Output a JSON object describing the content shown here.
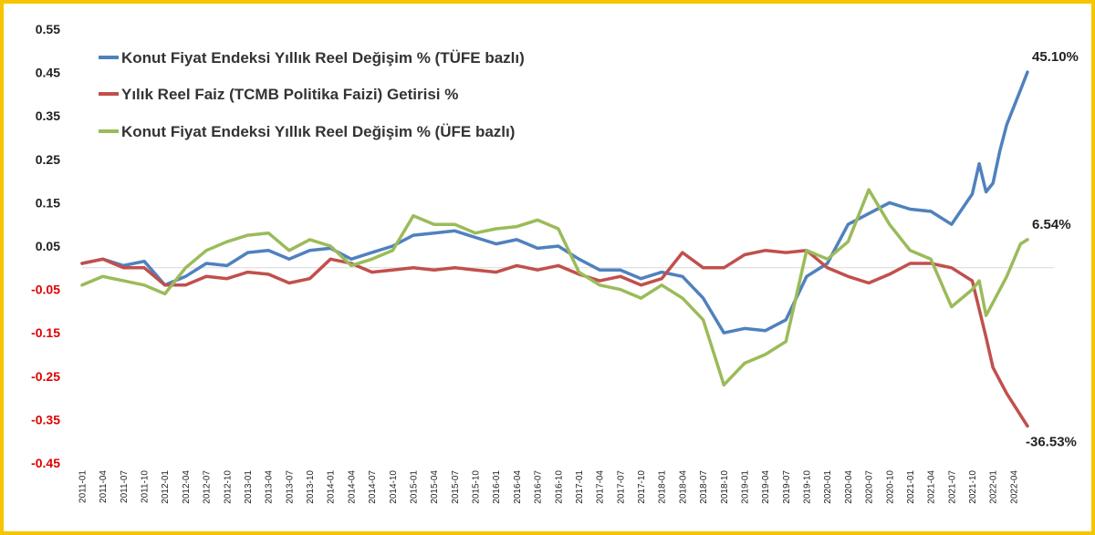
{
  "chart_data": {
    "type": "line",
    "ylim": [
      -0.45,
      0.55
    ],
    "y_ticks": [
      "0.55",
      "0.45",
      "0.35",
      "0.25",
      "0.15",
      "0.05",
      "-0.05",
      "-0.15",
      "-0.25",
      "-0.35",
      "-0.45"
    ],
    "y_tick_values": [
      0.55,
      0.45,
      0.35,
      0.25,
      0.15,
      0.05,
      -0.05,
      -0.15,
      -0.25,
      -0.35,
      -0.45
    ],
    "y_tick_colors": [
      "#222222",
      "#222222",
      "#222222",
      "#222222",
      "#222222",
      "#222222",
      "#e00000",
      "#e00000",
      "#e00000",
      "#e00000",
      "#e00000"
    ],
    "x_tick_labels": [
      "2011-01",
      "2011-04",
      "2011-07",
      "2011-10",
      "2012-01",
      "2012-04",
      "2012-07",
      "2012-10",
      "2013-01",
      "2013-04",
      "2013-07",
      "2013-10",
      "2014-01",
      "2014-04",
      "2014-07",
      "2014-10",
      "2015-01",
      "2015-04",
      "2015-07",
      "2015-10",
      "2016-01",
      "2016-04",
      "2016-07",
      "2016-10",
      "2017-01",
      "2017-04",
      "2017-07",
      "2017-10",
      "2018-01",
      "2018-04",
      "2018-07",
      "2018-10",
      "2019-01",
      "2019-04",
      "2019-07",
      "2019-10",
      "2020-01",
      "2020-04",
      "2020-07",
      "2020-10",
      "2021-01",
      "2021-04",
      "2021-07",
      "2021-10",
      "2022-01",
      "2022-04"
    ],
    "x_start": "2011-01",
    "x_end": "2022-06",
    "grid": false,
    "legend_position": "top-left",
    "series": [
      {
        "name": "Konut Fiyat Endeksi Yıllık Reel Değişim % (TÜFE bazlı)",
        "color": "#4f81bd",
        "end_label": "45.10%",
        "points": [
          [
            "2011-01",
            0.01
          ],
          [
            "2011-04",
            0.02
          ],
          [
            "2011-07",
            0.005
          ],
          [
            "2011-10",
            0.015
          ],
          [
            "2012-01",
            -0.04
          ],
          [
            "2012-04",
            -0.02
          ],
          [
            "2012-07",
            0.01
          ],
          [
            "2012-10",
            0.005
          ],
          [
            "2013-01",
            0.035
          ],
          [
            "2013-04",
            0.04
          ],
          [
            "2013-07",
            0.02
          ],
          [
            "2013-10",
            0.04
          ],
          [
            "2014-01",
            0.045
          ],
          [
            "2014-04",
            0.02
          ],
          [
            "2014-07",
            0.035
          ],
          [
            "2014-10",
            0.05
          ],
          [
            "2015-01",
            0.075
          ],
          [
            "2015-04",
            0.08
          ],
          [
            "2015-07",
            0.085
          ],
          [
            "2015-10",
            0.07
          ],
          [
            "2016-01",
            0.055
          ],
          [
            "2016-04",
            0.065
          ],
          [
            "2016-07",
            0.045
          ],
          [
            "2016-10",
            0.05
          ],
          [
            "2017-01",
            0.02
          ],
          [
            "2017-04",
            -0.005
          ],
          [
            "2017-07",
            -0.005
          ],
          [
            "2017-10",
            -0.025
          ],
          [
            "2018-01",
            -0.01
          ],
          [
            "2018-04",
            -0.02
          ],
          [
            "2018-07",
            -0.07
          ],
          [
            "2018-10",
            -0.15
          ],
          [
            "2019-01",
            -0.14
          ],
          [
            "2019-04",
            -0.145
          ],
          [
            "2019-07",
            -0.12
          ],
          [
            "2019-10",
            -0.02
          ],
          [
            "2020-01",
            0.01
          ],
          [
            "2020-04",
            0.1
          ],
          [
            "2020-07",
            0.125
          ],
          [
            "2020-10",
            0.15
          ],
          [
            "2021-01",
            0.135
          ],
          [
            "2021-04",
            0.13
          ],
          [
            "2021-07",
            0.1
          ],
          [
            "2021-10",
            0.17
          ],
          [
            "2021-11",
            0.24
          ],
          [
            "2021-12",
            0.175
          ],
          [
            "2022-01",
            0.195
          ],
          [
            "2022-02",
            0.27
          ],
          [
            "2022-03",
            0.33
          ],
          [
            "2022-05",
            0.41
          ],
          [
            "2022-06",
            0.451
          ]
        ]
      },
      {
        "name": "Yılık Reel Faiz (TCMB Politika Faizi) Getirisi %",
        "color": "#c0504d",
        "end_label": "-36.53%",
        "points": [
          [
            "2011-01",
            0.01
          ],
          [
            "2011-04",
            0.02
          ],
          [
            "2011-07",
            0.0
          ],
          [
            "2011-10",
            0.0
          ],
          [
            "2012-01",
            -0.04
          ],
          [
            "2012-04",
            -0.04
          ],
          [
            "2012-07",
            -0.02
          ],
          [
            "2012-10",
            -0.025
          ],
          [
            "2013-01",
            -0.01
          ],
          [
            "2013-04",
            -0.015
          ],
          [
            "2013-07",
            -0.035
          ],
          [
            "2013-10",
            -0.025
          ],
          [
            "2014-01",
            0.02
          ],
          [
            "2014-04",
            0.01
          ],
          [
            "2014-07",
            -0.01
          ],
          [
            "2014-10",
            -0.005
          ],
          [
            "2015-01",
            0.0
          ],
          [
            "2015-04",
            -0.005
          ],
          [
            "2015-07",
            0.0
          ],
          [
            "2015-10",
            -0.005
          ],
          [
            "2016-01",
            -0.01
          ],
          [
            "2016-04",
            0.005
          ],
          [
            "2016-07",
            -0.005
          ],
          [
            "2016-10",
            0.005
          ],
          [
            "2017-01",
            -0.015
          ],
          [
            "2017-04",
            -0.03
          ],
          [
            "2017-07",
            -0.02
          ],
          [
            "2017-10",
            -0.04
          ],
          [
            "2018-01",
            -0.025
          ],
          [
            "2018-04",
            0.035
          ],
          [
            "2018-07",
            0.0
          ],
          [
            "2018-10",
            0.0
          ],
          [
            "2019-01",
            0.03
          ],
          [
            "2019-04",
            0.04
          ],
          [
            "2019-07",
            0.035
          ],
          [
            "2019-10",
            0.04
          ],
          [
            "2020-01",
            0.0
          ],
          [
            "2020-04",
            -0.02
          ],
          [
            "2020-07",
            -0.035
          ],
          [
            "2020-10",
            -0.015
          ],
          [
            "2021-01",
            0.01
          ],
          [
            "2021-04",
            0.01
          ],
          [
            "2021-07",
            0.0
          ],
          [
            "2021-10",
            -0.03
          ],
          [
            "2021-12",
            -0.16
          ],
          [
            "2022-01",
            -0.23
          ],
          [
            "2022-03",
            -0.29
          ],
          [
            "2022-05",
            -0.34
          ],
          [
            "2022-06",
            -0.365
          ]
        ]
      },
      {
        "name": "Konut Fiyat Endeksi Yıllık Reel Değişim % (ÜFE bazlı)",
        "color": "#9bbb59",
        "end_label": "6.54%",
        "points": [
          [
            "2011-01",
            -0.04
          ],
          [
            "2011-04",
            -0.02
          ],
          [
            "2011-07",
            -0.03
          ],
          [
            "2011-10",
            -0.04
          ],
          [
            "2012-01",
            -0.06
          ],
          [
            "2012-04",
            0.0
          ],
          [
            "2012-07",
            0.04
          ],
          [
            "2012-10",
            0.06
          ],
          [
            "2013-01",
            0.075
          ],
          [
            "2013-04",
            0.08
          ],
          [
            "2013-07",
            0.04
          ],
          [
            "2013-10",
            0.065
          ],
          [
            "2014-01",
            0.05
          ],
          [
            "2014-04",
            0.005
          ],
          [
            "2014-07",
            0.02
          ],
          [
            "2014-10",
            0.04
          ],
          [
            "2015-01",
            0.12
          ],
          [
            "2015-04",
            0.1
          ],
          [
            "2015-07",
            0.1
          ],
          [
            "2015-10",
            0.08
          ],
          [
            "2016-01",
            0.09
          ],
          [
            "2016-04",
            0.095
          ],
          [
            "2016-07",
            0.11
          ],
          [
            "2016-10",
            0.09
          ],
          [
            "2017-01",
            -0.01
          ],
          [
            "2017-04",
            -0.04
          ],
          [
            "2017-07",
            -0.05
          ],
          [
            "2017-10",
            -0.07
          ],
          [
            "2018-01",
            -0.04
          ],
          [
            "2018-04",
            -0.07
          ],
          [
            "2018-07",
            -0.12
          ],
          [
            "2018-10",
            -0.27
          ],
          [
            "2019-01",
            -0.22
          ],
          [
            "2019-04",
            -0.2
          ],
          [
            "2019-07",
            -0.17
          ],
          [
            "2019-10",
            0.04
          ],
          [
            "2020-01",
            0.02
          ],
          [
            "2020-04",
            0.06
          ],
          [
            "2020-07",
            0.18
          ],
          [
            "2020-10",
            0.1
          ],
          [
            "2021-01",
            0.04
          ],
          [
            "2021-04",
            0.02
          ],
          [
            "2021-07",
            -0.09
          ],
          [
            "2021-10",
            -0.05
          ],
          [
            "2021-11",
            -0.03
          ],
          [
            "2021-12",
            -0.11
          ],
          [
            "2022-01",
            -0.08
          ],
          [
            "2022-03",
            -0.02
          ],
          [
            "2022-05",
            0.055
          ],
          [
            "2022-06",
            0.065
          ]
        ]
      }
    ]
  }
}
